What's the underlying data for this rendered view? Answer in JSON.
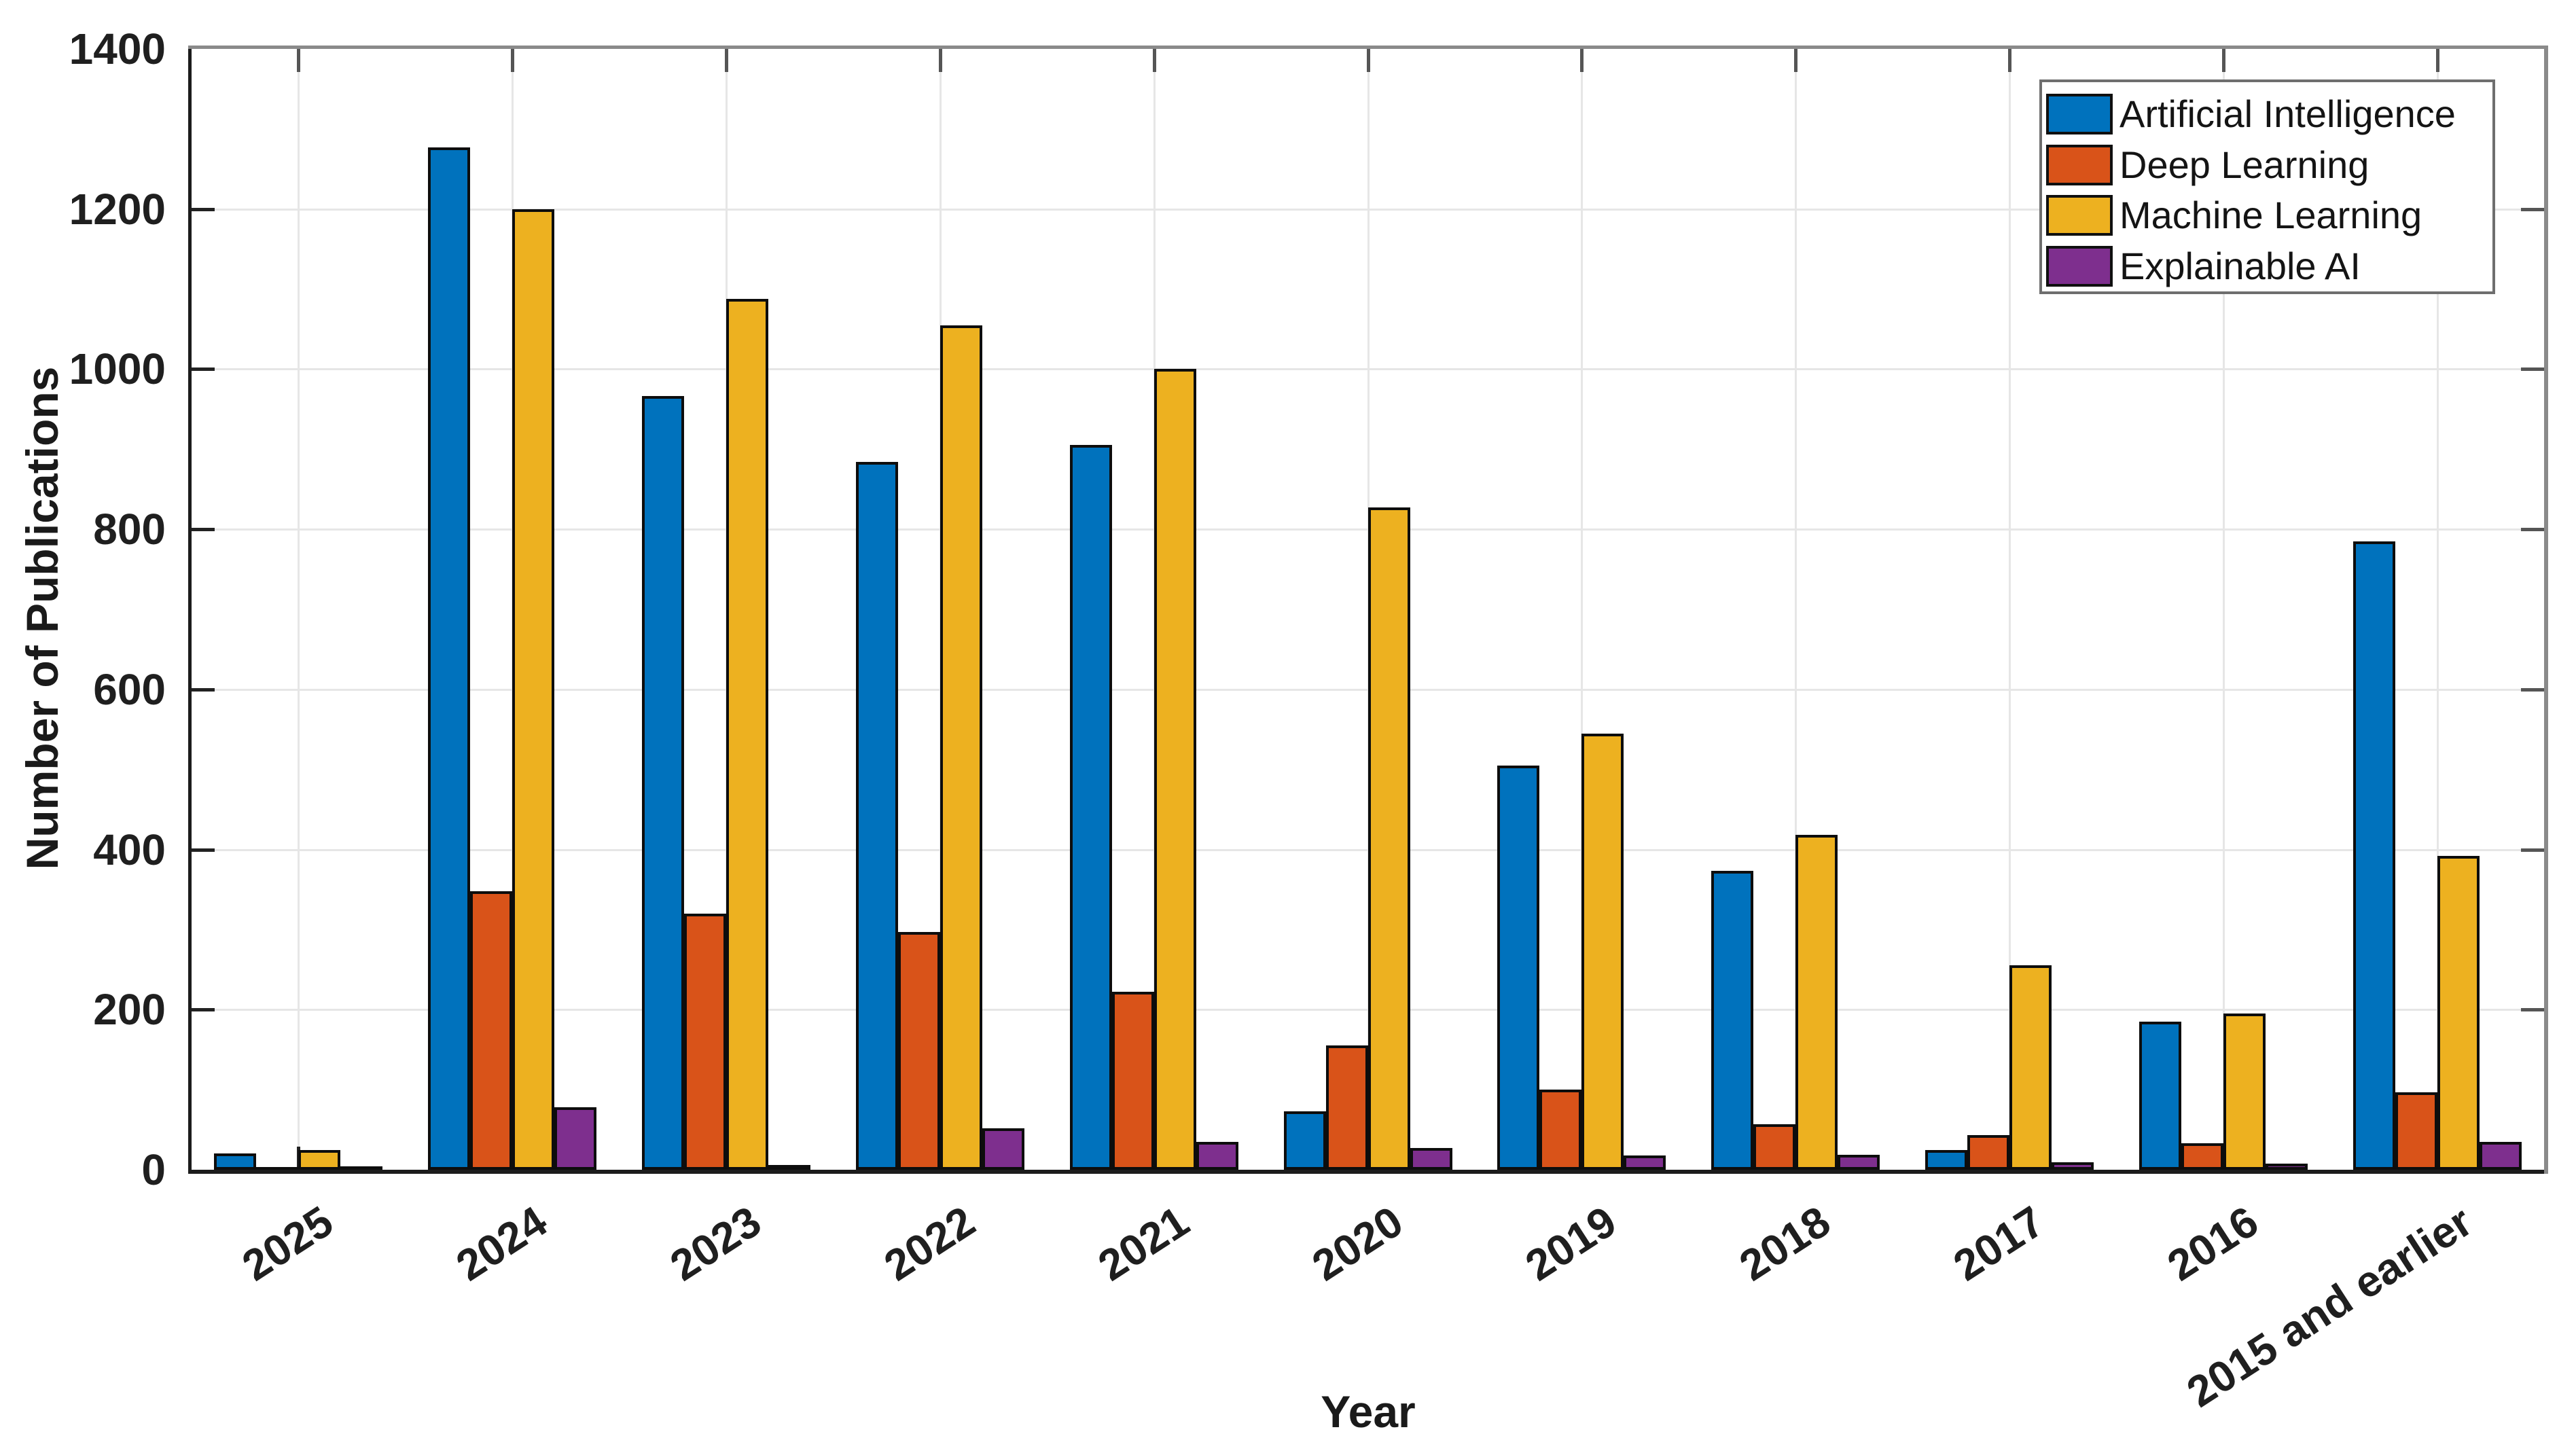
{
  "chart_data": {
    "type": "bar",
    "title": "",
    "xlabel": "Year",
    "ylabel": "Number of Publications",
    "categories": [
      "2025",
      "2024",
      "2023",
      "2022",
      "2021",
      "2020",
      "2019",
      "2018",
      "2017",
      "2016",
      "2015 and earlier"
    ],
    "series": [
      {
        "name": "Artificial Intelligence",
        "color": "#0072BD",
        "values": [
          20,
          1277,
          966,
          884,
          905,
          73,
          505,
          373,
          25,
          185,
          785
        ]
      },
      {
        "name": "Deep Learning",
        "color": "#D95319",
        "values": [
          1,
          348,
          320,
          297,
          222,
          155,
          100,
          57,
          43,
          33,
          97
        ]
      },
      {
        "name": "Machine Learning",
        "color": "#EDB120",
        "values": [
          25,
          1200,
          1088,
          1055,
          1000,
          827,
          545,
          418,
          255,
          195,
          392
        ]
      },
      {
        "name": "Explainable AI",
        "color": "#7E2F8E",
        "values": [
          4,
          78,
          6,
          52,
          35,
          27,
          18,
          19,
          9,
          8,
          35
        ]
      }
    ],
    "ylim": [
      0,
      1400
    ],
    "yticks": [
      0,
      200,
      400,
      600,
      800,
      1000,
      1200,
      1400
    ],
    "x_tick_rotation_deg": -33,
    "grid": true,
    "legend_position": "top-right",
    "style_colors": {
      "axis_line": "#1c1c1c",
      "box_line": "#8a8a8a",
      "grid_line": "#e6e6e6",
      "tick_mark": "#3a3a3a",
      "bar_edge": "#0d0d0d",
      "legend_border": "#6e6e6e",
      "text": "#1f1f1f",
      "background": "#ffffff"
    }
  }
}
